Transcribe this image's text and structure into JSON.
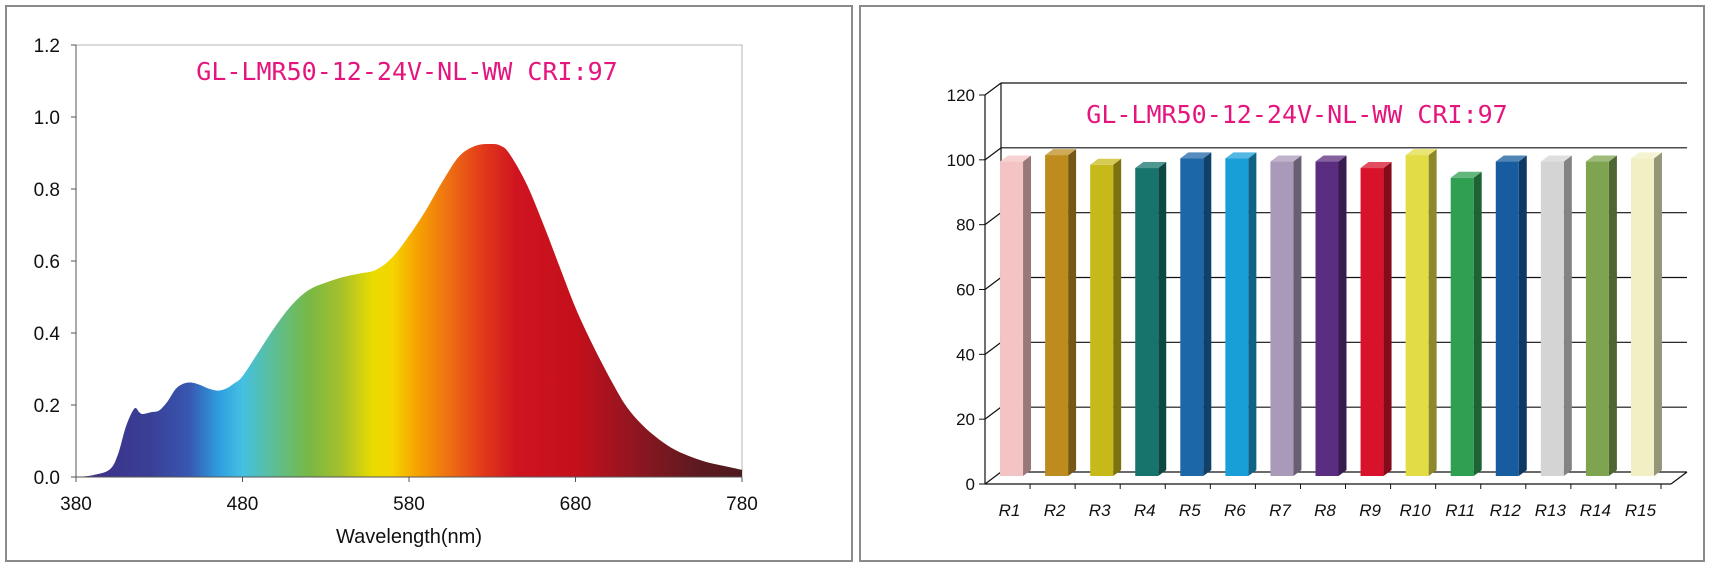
{
  "chart_data": [
    {
      "type": "area",
      "title": "GL-LMR50-12-24V-NL-WW CRI:97",
      "xlabel": "Wavelength(nm)",
      "ylabel": "",
      "xlim": [
        380,
        780
      ],
      "ylim": [
        0,
        1.2
      ],
      "x_ticks": [
        "380",
        "480",
        "580",
        "680",
        "780"
      ],
      "y_ticks": [
        "0.0",
        "0.2",
        "0.4",
        "0.6",
        "0.8",
        "1.0",
        "1.2"
      ],
      "grid": false,
      "fill": "visible-spectrum gradient",
      "x": [
        380,
        390,
        400,
        405,
        410,
        415,
        418,
        420,
        425,
        430,
        435,
        440,
        445,
        450,
        455,
        460,
        465,
        470,
        475,
        480,
        490,
        500,
        510,
        520,
        530,
        540,
        550,
        560,
        570,
        580,
        590,
        600,
        610,
        620,
        630,
        635,
        640,
        650,
        660,
        670,
        680,
        690,
        700,
        710,
        720,
        730,
        740,
        750,
        760,
        770,
        780
      ],
      "y": [
        0.0,
        0.005,
        0.02,
        0.06,
        0.14,
        0.19,
        0.18,
        0.175,
        0.18,
        0.185,
        0.21,
        0.245,
        0.26,
        0.262,
        0.255,
        0.245,
        0.24,
        0.245,
        0.26,
        0.28,
        0.35,
        0.42,
        0.48,
        0.52,
        0.54,
        0.555,
        0.565,
        0.575,
        0.61,
        0.67,
        0.74,
        0.82,
        0.89,
        0.92,
        0.925,
        0.92,
        0.9,
        0.82,
        0.71,
        0.59,
        0.47,
        0.37,
        0.28,
        0.2,
        0.145,
        0.105,
        0.075,
        0.055,
        0.04,
        0.03,
        0.02
      ]
    },
    {
      "type": "bar",
      "title": "GL-LMR50-12-24V-NL-WW CRI:97",
      "xlabel": "",
      "ylabel": "",
      "ylim": [
        0,
        120
      ],
      "y_ticks": [
        "0",
        "20",
        "40",
        "60",
        "80",
        "100",
        "120"
      ],
      "grid": true,
      "style": "3d",
      "categories": [
        "R1",
        "R2",
        "R3",
        "R4",
        "R5",
        "R6",
        "R7",
        "R8",
        "R9",
        "R10",
        "R11",
        "R12",
        "R13",
        "R14",
        "R15"
      ],
      "values": [
        97,
        99,
        96,
        95,
        98,
        98,
        97,
        97,
        95,
        99,
        92,
        97,
        97,
        97,
        98
      ],
      "colors": [
        "#f4c3c4",
        "#be8c1e",
        "#c8b91a",
        "#17746c",
        "#1b67a8",
        "#189fd8",
        "#a99ab9",
        "#5b2d80",
        "#d8122a",
        "#e2dc45",
        "#2f9f52",
        "#165c9e",
        "#d4d4d4",
        "#7ea450",
        "#f0f0c4"
      ]
    }
  ]
}
